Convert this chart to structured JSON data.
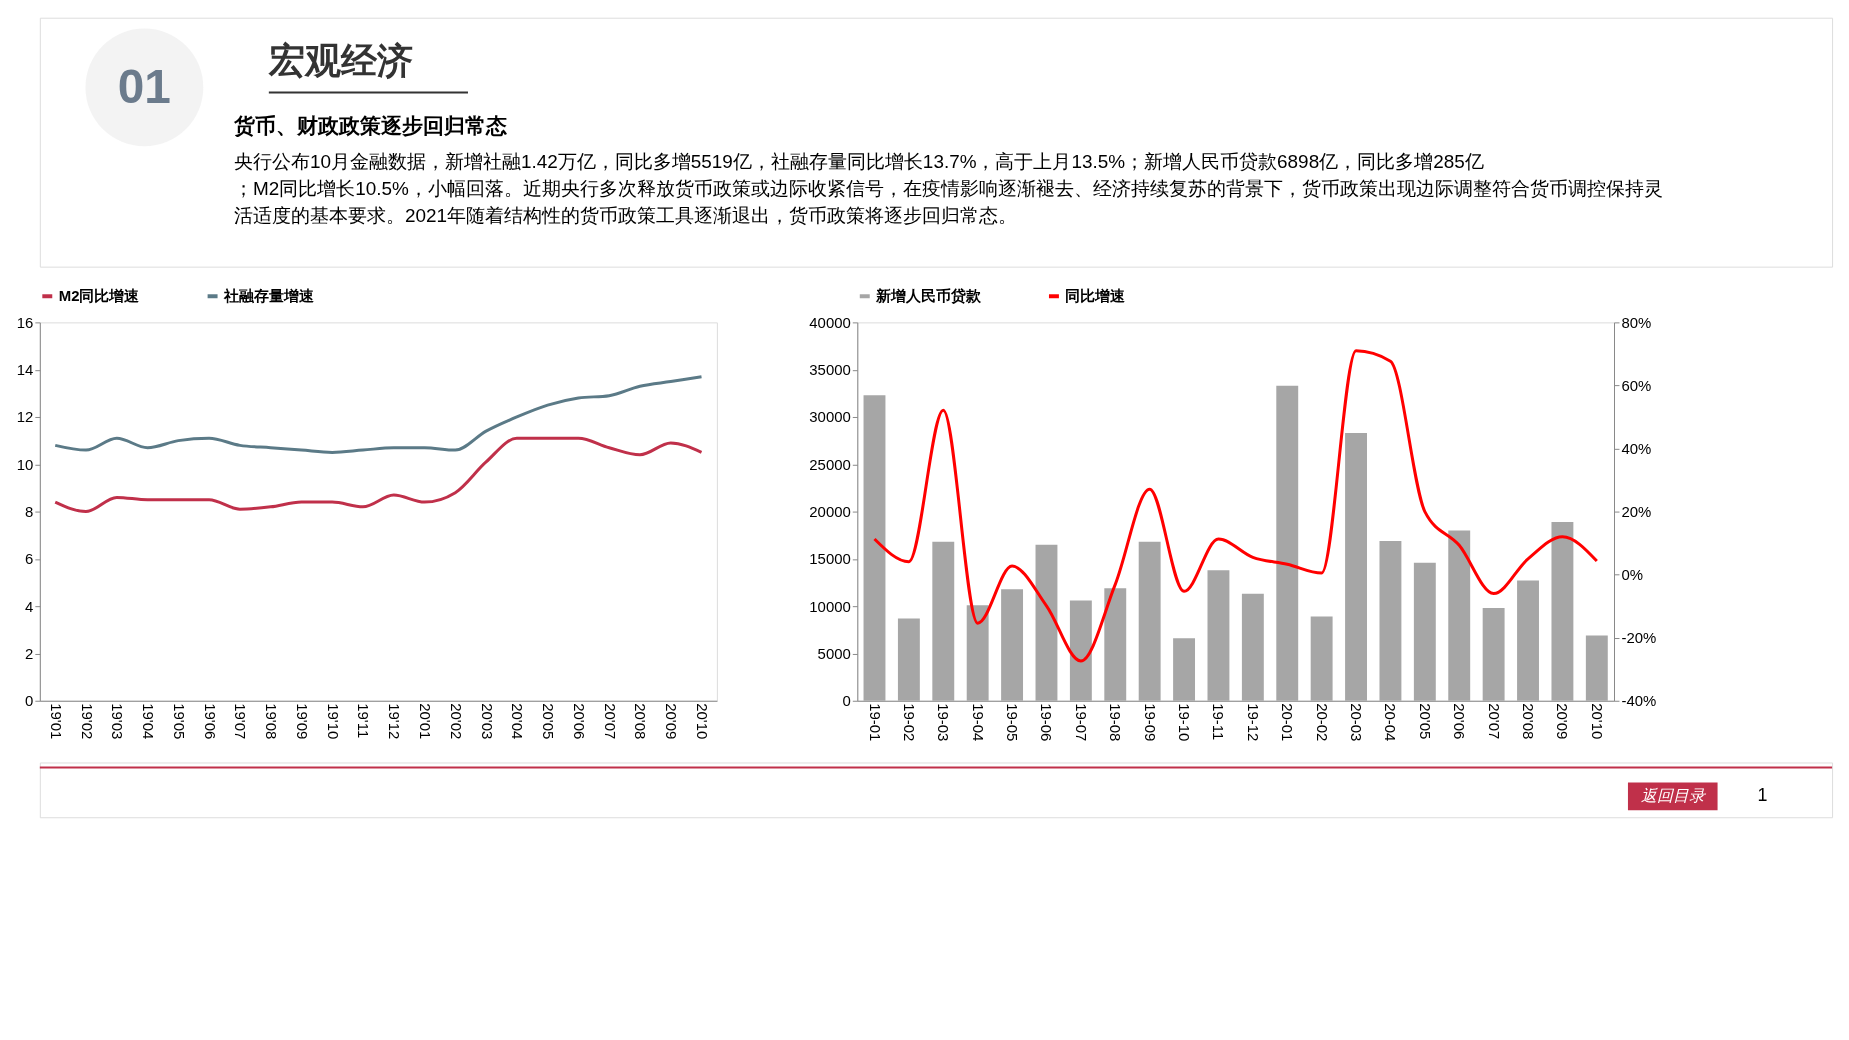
{
  "chart_data": [
    {
      "type": "other",
      "title": "货币、财政政策逐步回归常态",
      "subtitle": "央行公布10月金融数据，新增社融1.42万亿，同比多增5519亿，社融存量同比增长13.7%，高于上月13.5%；新增人民币贷款6898亿，同比多增285亿；M2同比增长10.5%，小幅回落。近期央行多次释放货币政策或边际收紧信号，在疫情影响逐渐褪去、经济持续复苏的背景下，货币政策出现边际调整符合货币调控保持灵活适度的基本要求。2021年随着结构性的货币政策工具逐渐退出，货币政策将逐步回归常态。",
      "annotations": [
        "01",
        "宏观经济",
        "返回目录",
        "1"
      ]
    },
    {
      "type": "line",
      "categories": [
        "19'01",
        "19'02",
        "19'03",
        "19'04",
        "19'05",
        "19'06",
        "19'07",
        "19'08",
        "19'09",
        "19'10",
        "19'11",
        "19'12",
        "20'01",
        "20'02",
        "20'03",
        "20'04",
        "20'05",
        "20'06",
        "20'07",
        "20'08",
        "20'09",
        "20'10"
      ],
      "series": [
        {
          "name": "M2同比增速",
          "color": "#c0304a",
          "values": [
            8.4,
            8.0,
            8.6,
            8.5,
            8.5,
            8.5,
            8.1,
            8.2,
            8.4,
            8.4,
            8.2,
            8.7,
            8.4,
            8.8,
            10.1,
            11.1,
            11.1,
            11.1,
            10.7,
            10.4,
            10.9,
            10.5
          ]
        },
        {
          "name": "社融存量增速",
          "color": "#5b7a87",
          "values": [
            10.8,
            10.6,
            11.1,
            10.7,
            11.0,
            11.1,
            10.8,
            10.7,
            10.6,
            10.5,
            10.6,
            10.7,
            10.7,
            10.6,
            11.4,
            12.0,
            12.5,
            12.8,
            12.9,
            13.3,
            13.5,
            13.7
          ]
        }
      ],
      "ylim": [
        0,
        16
      ],
      "yticks": [
        0,
        2,
        4,
        6,
        8,
        10,
        12,
        14,
        16
      ],
      "legend": "top",
      "grid": false,
      "marker": "none"
    },
    {
      "type": "bar",
      "categories": [
        "19-01",
        "19-02",
        "19-03",
        "19-04",
        "19-05",
        "19-06",
        "19-07",
        "19-08",
        "19-09",
        "19-10",
        "19-11",
        "19-12",
        "20-01",
        "20-02",
        "20-03",
        "20-04",
        "20'05",
        "20'06",
        "20'07",
        "20'08",
        "20'09",
        "20'10"
      ],
      "series": [
        {
          "name": "新增人民币贷款",
          "color": "#a6a6a6",
          "values": [
            32300,
            8700,
            16800,
            10100,
            11800,
            16500,
            10600,
            11900,
            16800,
            6600,
            13800,
            11300,
            33300,
            8900,
            28300,
            16900,
            14600,
            18000,
            9800,
            12700,
            18900,
            6900
          ]
        },
        {
          "name": "同比增速",
          "type": "line",
          "axis": "y2",
          "color": "#ff0000",
          "values": [
            11.3,
            4.1,
            52.1,
            -15.4,
            2.7,
            -9.9,
            -27.4,
            -3.1,
            27.1,
            -5.3,
            11.3,
            5.5,
            3.3,
            0.5,
            71,
            67.7,
            20,
            9.3,
            -6,
            5,
            12,
            4.3
          ]
        }
      ],
      "ylim": [
        0,
        40000
      ],
      "yticks": [
        0,
        5000,
        10000,
        15000,
        20000,
        25000,
        30000,
        35000,
        40000
      ],
      "y2lim": [
        -40,
        80
      ],
      "y2ticks": [
        {
          "value": -40,
          "label": "-40%"
        },
        {
          "value": -20,
          "label": "-20%"
        },
        {
          "value": 0,
          "label": "0%"
        },
        {
          "value": 20,
          "label": "20%"
        },
        {
          "value": 40,
          "label": "40%"
        },
        {
          "value": 60,
          "label": "60%"
        },
        {
          "value": 80,
          "label": "80%"
        }
      ],
      "legend": "top",
      "grid": false,
      "marker": "none"
    }
  ]
}
